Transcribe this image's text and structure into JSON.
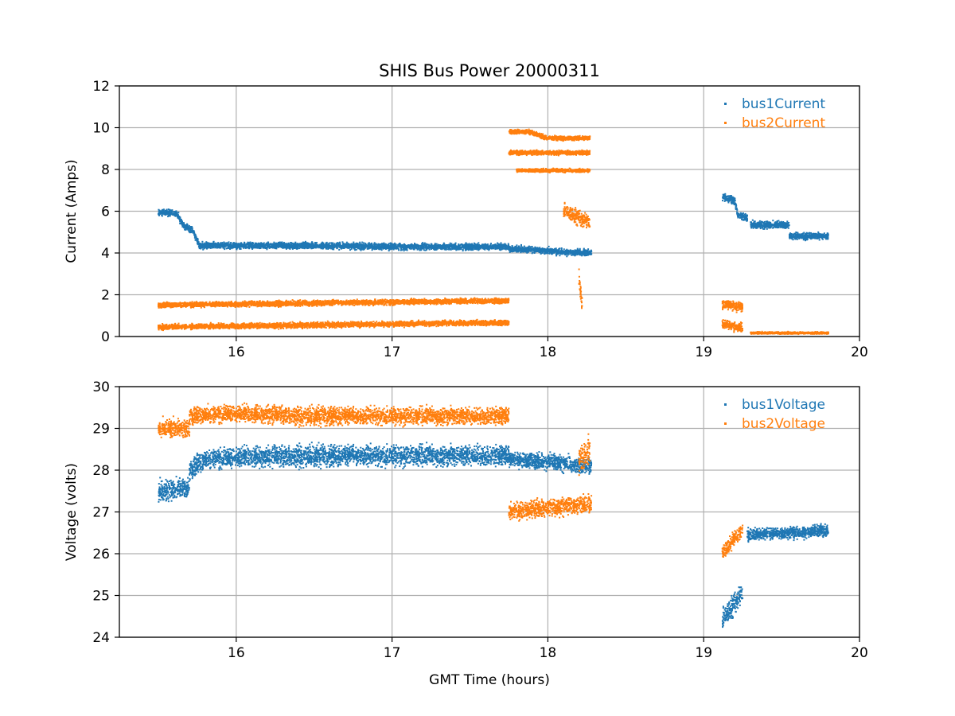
{
  "title": "SHIS Bus Power 20000311",
  "colors": {
    "bus1": "#1f77b4",
    "bus2": "#ff7f0e",
    "grid": "#b0b0b0",
    "axis": "#000000"
  },
  "chart_data": [
    {
      "type": "scatter",
      "title": "SHIS Bus Power 20000311",
      "xlabel": "",
      "ylabel": "Current (Amps)",
      "xlim": [
        15.25,
        20.0
      ],
      "ylim": [
        0,
        12
      ],
      "xticks": [
        16,
        17,
        18,
        19,
        20
      ],
      "yticks": [
        0,
        2,
        4,
        6,
        8,
        10,
        12
      ],
      "grid": true,
      "legend_position": "top-right",
      "series": [
        {
          "name": "bus1Current",
          "color": "#1f77b4",
          "segments": [
            {
              "x": [
                15.5,
                15.62,
                15.66,
                15.72,
                15.76
              ],
              "y": [
                5.95,
                5.9,
                5.3,
                5.1,
                4.4
              ],
              "spread": 0.22
            },
            {
              "x": [
                15.76,
                16.0,
                16.5,
                17.0,
                17.5,
                17.75
              ],
              "y": [
                4.35,
                4.35,
                4.35,
                4.3,
                4.3,
                4.3
              ],
              "spread": 0.22
            },
            {
              "x": [
                17.75,
                17.9,
                18.1,
                18.28
              ],
              "y": [
                4.2,
                4.15,
                4.05,
                4.0
              ],
              "spread": 0.22
            },
            {
              "x": [
                19.12,
                19.2,
                19.22,
                19.28
              ],
              "y": [
                6.7,
                6.5,
                5.8,
                5.7
              ],
              "spread": 0.25
            },
            {
              "x": [
                19.3,
                19.55
              ],
              "y": [
                5.35,
                5.35
              ],
              "spread": 0.25
            },
            {
              "x": [
                19.55,
                19.8
              ],
              "y": [
                4.8,
                4.8
              ],
              "spread": 0.22
            }
          ]
        },
        {
          "name": "bus2Current",
          "color": "#ff7f0e",
          "segments": [
            {
              "x": [
                15.5,
                16.0,
                16.5,
                17.0,
                17.5,
                17.75
              ],
              "y": [
                1.5,
                1.55,
                1.6,
                1.65,
                1.7,
                1.7
              ],
              "spread": 0.18
            },
            {
              "x": [
                15.5,
                16.0,
                16.5,
                17.0,
                17.5,
                17.75
              ],
              "y": [
                0.45,
                0.5,
                0.55,
                0.6,
                0.65,
                0.65
              ],
              "spread": 0.18
            },
            {
              "x": [
                17.75,
                17.88,
                17.88,
                18.0,
                18.1,
                18.27
              ],
              "y": [
                9.8,
                9.8,
                9.8,
                9.5,
                9.5,
                9.5
              ],
              "spread": 0.15
            },
            {
              "x": [
                17.75,
                18.0,
                18.27
              ],
              "y": [
                8.8,
                8.8,
                8.8
              ],
              "spread": 0.15
            },
            {
              "x": [
                17.8,
                18.0,
                18.27
              ],
              "y": [
                7.95,
                7.95,
                7.95
              ],
              "spread": 0.12
            },
            {
              "x": [
                18.1,
                18.27
              ],
              "y": [
                6.0,
                5.5
              ],
              "spread": 0.5
            },
            {
              "x": [
                18.2,
                18.22
              ],
              "y": [
                2.8,
                1.5
              ],
              "spread": 0.5
            },
            {
              "x": [
                19.12,
                19.25
              ],
              "y": [
                1.55,
                1.4
              ],
              "spread": 0.3
            },
            {
              "x": [
                19.12,
                19.25
              ],
              "y": [
                0.6,
                0.4
              ],
              "spread": 0.3
            },
            {
              "x": [
                19.3,
                19.8
              ],
              "y": [
                0.17,
                0.17
              ],
              "spread": 0.07
            }
          ]
        }
      ]
    },
    {
      "type": "scatter",
      "title": "",
      "xlabel": "GMT Time (hours)",
      "ylabel": "Voltage (volts)",
      "xlim": [
        15.25,
        20.0
      ],
      "ylim": [
        24,
        30
      ],
      "xticks": [
        16,
        17,
        18,
        19,
        20
      ],
      "yticks": [
        24,
        25,
        26,
        27,
        28,
        29,
        30
      ],
      "grid": true,
      "legend_position": "top-right",
      "series": [
        {
          "name": "bus1Voltage",
          "color": "#1f77b4",
          "segments": [
            {
              "x": [
                15.5,
                15.7
              ],
              "y": [
                27.5,
                27.6
              ],
              "spread": 0.35
            },
            {
              "x": [
                15.7,
                15.8,
                16.0,
                16.5,
                17.0,
                17.5,
                17.75
              ],
              "y": [
                28.0,
                28.25,
                28.3,
                28.35,
                28.35,
                28.35,
                28.35
              ],
              "spread": 0.35
            },
            {
              "x": [
                17.75,
                18.0,
                18.28
              ],
              "y": [
                28.25,
                28.2,
                28.1
              ],
              "spread": 0.28
            },
            {
              "x": [
                19.12,
                19.25
              ],
              "y": [
                24.4,
                25.1
              ],
              "spread": 0.35
            },
            {
              "x": [
                19.28,
                19.8
              ],
              "y": [
                26.45,
                26.55
              ],
              "spread": 0.2
            }
          ]
        },
        {
          "name": "bus2Voltage",
          "color": "#ff7f0e",
          "segments": [
            {
              "x": [
                15.5,
                15.7
              ],
              "y": [
                29.0,
                29.0
              ],
              "spread": 0.3
            },
            {
              "x": [
                15.7,
                16.0,
                16.5,
                17.0,
                17.5,
                17.75
              ],
              "y": [
                29.3,
                29.35,
                29.3,
                29.3,
                29.3,
                29.3
              ],
              "spread": 0.3
            },
            {
              "x": [
                17.75,
                18.0,
                18.28
              ],
              "y": [
                27.0,
                27.1,
                27.2
              ],
              "spread": 0.3
            },
            {
              "x": [
                18.2,
                18.27
              ],
              "y": [
                28.2,
                28.5
              ],
              "spread": 0.5
            },
            {
              "x": [
                19.12,
                19.25
              ],
              "y": [
                26.0,
                26.6
              ],
              "spread": 0.25
            }
          ]
        }
      ]
    }
  ]
}
